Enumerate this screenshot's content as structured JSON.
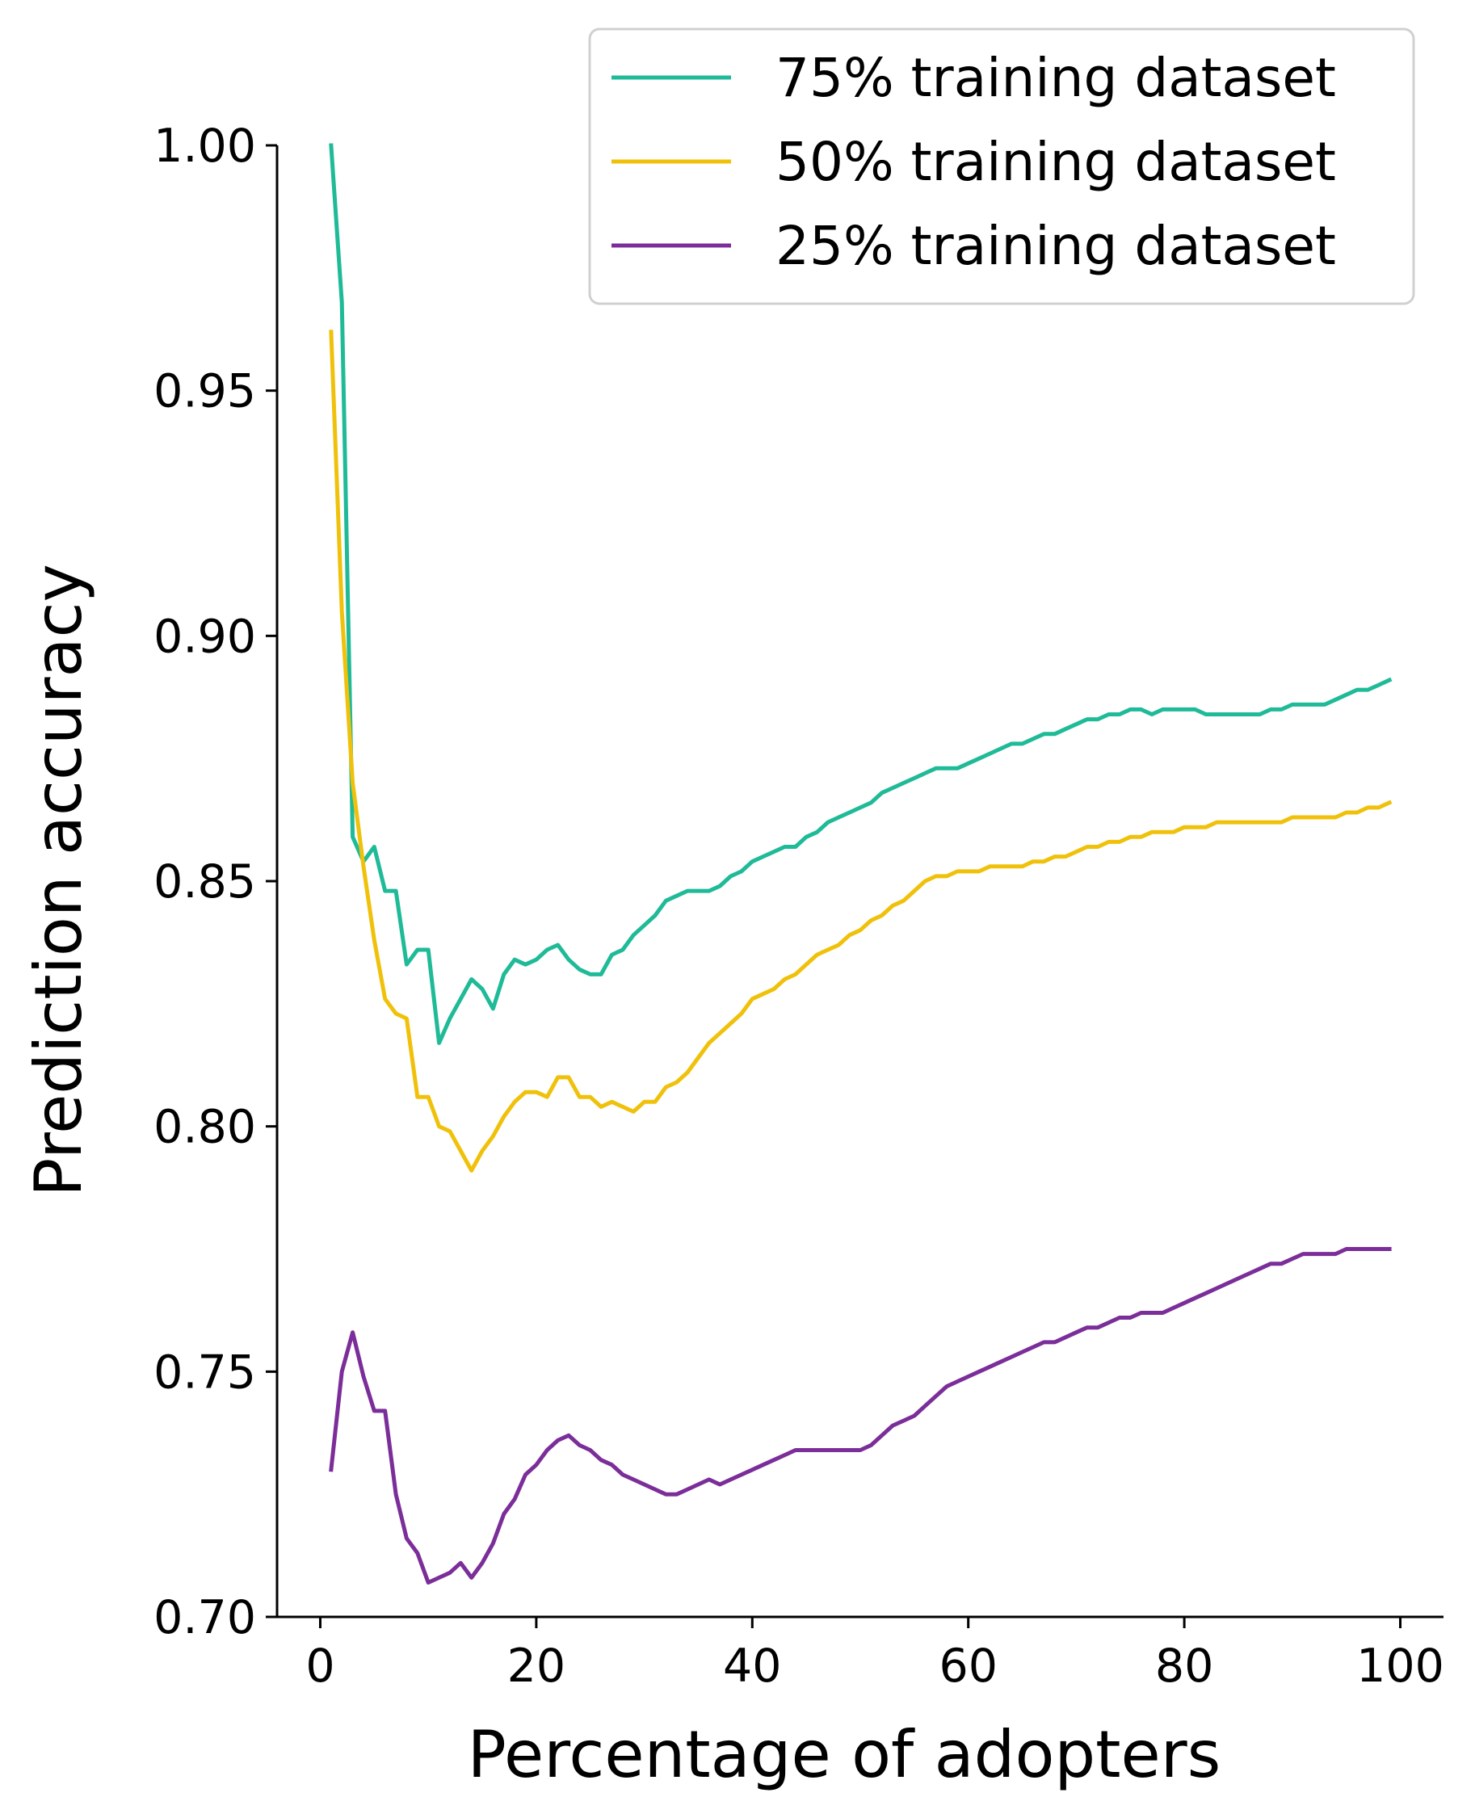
{
  "chart_data": {
    "type": "line",
    "title": "",
    "xlabel": "Percentage of adopters",
    "ylabel": "Prediction accuracy",
    "xlim": [
      -4,
      104
    ],
    "ylim": [
      0.7,
      1.0
    ],
    "x_ticks": [
      0,
      20,
      40,
      60,
      80,
      100
    ],
    "x_tick_labels": [
      "0",
      "20",
      "40",
      "60",
      "80",
      "100"
    ],
    "y_ticks": [
      0.7,
      0.75,
      0.8,
      0.85,
      0.9,
      0.95,
      1.0
    ],
    "y_tick_labels": [
      "0.70",
      "0.75",
      "0.80",
      "0.85",
      "0.90",
      "0.95",
      "1.00"
    ],
    "grid": false,
    "legend_position": "top-right",
    "series": [
      {
        "name": "75% training dataset",
        "color": "#1fba97",
        "x": [
          1,
          2,
          3,
          4,
          5,
          6,
          7,
          8,
          9,
          10,
          11,
          12,
          13,
          14,
          15,
          16,
          17,
          18,
          19,
          20,
          21,
          22,
          23,
          24,
          25,
          26,
          27,
          28,
          29,
          30,
          31,
          32,
          33,
          34,
          35,
          36,
          37,
          38,
          39,
          40,
          41,
          42,
          43,
          44,
          45,
          46,
          47,
          48,
          49,
          50,
          51,
          52,
          53,
          54,
          55,
          56,
          57,
          58,
          59,
          60,
          61,
          62,
          63,
          64,
          65,
          66,
          67,
          68,
          69,
          70,
          71,
          72,
          73,
          74,
          75,
          76,
          77,
          78,
          79,
          80,
          81,
          82,
          83,
          84,
          85,
          86,
          87,
          88,
          89,
          90,
          91,
          92,
          93,
          94,
          95,
          96,
          97,
          98,
          99
        ],
        "values": [
          1.0,
          0.968,
          0.859,
          0.854,
          0.857,
          0.848,
          0.848,
          0.833,
          0.836,
          0.836,
          0.817,
          0.822,
          0.826,
          0.83,
          0.828,
          0.824,
          0.831,
          0.834,
          0.833,
          0.834,
          0.836,
          0.837,
          0.834,
          0.832,
          0.831,
          0.831,
          0.835,
          0.836,
          0.839,
          0.841,
          0.843,
          0.846,
          0.847,
          0.848,
          0.848,
          0.848,
          0.849,
          0.851,
          0.852,
          0.854,
          0.855,
          0.856,
          0.857,
          0.857,
          0.859,
          0.86,
          0.862,
          0.863,
          0.864,
          0.865,
          0.866,
          0.868,
          0.869,
          0.87,
          0.871,
          0.872,
          0.873,
          0.873,
          0.873,
          0.874,
          0.875,
          0.876,
          0.877,
          0.878,
          0.878,
          0.879,
          0.88,
          0.88,
          0.881,
          0.882,
          0.883,
          0.883,
          0.884,
          0.884,
          0.885,
          0.885,
          0.884,
          0.885,
          0.885,
          0.885,
          0.885,
          0.884,
          0.884,
          0.884,
          0.884,
          0.884,
          0.884,
          0.885,
          0.885,
          0.886,
          0.886,
          0.886,
          0.886,
          0.887,
          0.888,
          0.889,
          0.889,
          0.89,
          0.891
        ]
      },
      {
        "name": "50% training dataset",
        "color": "#f0c10a",
        "x": [
          1,
          2,
          3,
          4,
          5,
          6,
          7,
          8,
          9,
          10,
          11,
          12,
          13,
          14,
          15,
          16,
          17,
          18,
          19,
          20,
          21,
          22,
          23,
          24,
          25,
          26,
          27,
          28,
          29,
          30,
          31,
          32,
          33,
          34,
          35,
          36,
          37,
          38,
          39,
          40,
          41,
          42,
          43,
          44,
          45,
          46,
          47,
          48,
          49,
          50,
          51,
          52,
          53,
          54,
          55,
          56,
          57,
          58,
          59,
          60,
          61,
          62,
          63,
          64,
          65,
          66,
          67,
          68,
          69,
          70,
          71,
          72,
          73,
          74,
          75,
          76,
          77,
          78,
          79,
          80,
          81,
          82,
          83,
          84,
          85,
          86,
          87,
          88,
          89,
          90,
          91,
          92,
          93,
          94,
          95,
          96,
          97,
          98,
          99
        ],
        "values": [
          0.962,
          0.905,
          0.87,
          0.853,
          0.838,
          0.826,
          0.823,
          0.822,
          0.806,
          0.806,
          0.8,
          0.799,
          0.795,
          0.791,
          0.795,
          0.798,
          0.802,
          0.805,
          0.807,
          0.807,
          0.806,
          0.81,
          0.81,
          0.806,
          0.806,
          0.804,
          0.805,
          0.804,
          0.803,
          0.805,
          0.805,
          0.808,
          0.809,
          0.811,
          0.814,
          0.817,
          0.819,
          0.821,
          0.823,
          0.826,
          0.827,
          0.828,
          0.83,
          0.831,
          0.833,
          0.835,
          0.836,
          0.837,
          0.839,
          0.84,
          0.842,
          0.843,
          0.845,
          0.846,
          0.848,
          0.85,
          0.851,
          0.851,
          0.852,
          0.852,
          0.852,
          0.853,
          0.853,
          0.853,
          0.853,
          0.854,
          0.854,
          0.855,
          0.855,
          0.856,
          0.857,
          0.857,
          0.858,
          0.858,
          0.859,
          0.859,
          0.86,
          0.86,
          0.86,
          0.861,
          0.861,
          0.861,
          0.862,
          0.862,
          0.862,
          0.862,
          0.862,
          0.862,
          0.862,
          0.863,
          0.863,
          0.863,
          0.863,
          0.863,
          0.864,
          0.864,
          0.865,
          0.865,
          0.866
        ]
      },
      {
        "name": "25% training dataset",
        "color": "#7b2e99",
        "x": [
          1,
          2,
          3,
          4,
          5,
          6,
          7,
          8,
          9,
          10,
          11,
          12,
          13,
          14,
          15,
          16,
          17,
          18,
          19,
          20,
          21,
          22,
          23,
          24,
          25,
          26,
          27,
          28,
          29,
          30,
          31,
          32,
          33,
          34,
          35,
          36,
          37,
          38,
          39,
          40,
          41,
          42,
          43,
          44,
          45,
          46,
          47,
          48,
          49,
          50,
          51,
          52,
          53,
          54,
          55,
          56,
          57,
          58,
          59,
          60,
          61,
          62,
          63,
          64,
          65,
          66,
          67,
          68,
          69,
          70,
          71,
          72,
          73,
          74,
          75,
          76,
          77,
          78,
          79,
          80,
          81,
          82,
          83,
          84,
          85,
          86,
          87,
          88,
          89,
          90,
          91,
          92,
          93,
          94,
          95,
          96,
          97,
          98,
          99
        ],
        "values": [
          0.73,
          0.75,
          0.758,
          0.749,
          0.742,
          0.742,
          0.725,
          0.716,
          0.713,
          0.707,
          0.708,
          0.709,
          0.711,
          0.708,
          0.711,
          0.715,
          0.721,
          0.724,
          0.729,
          0.731,
          0.734,
          0.736,
          0.737,
          0.735,
          0.734,
          0.732,
          0.731,
          0.729,
          0.728,
          0.727,
          0.726,
          0.725,
          0.725,
          0.726,
          0.727,
          0.728,
          0.727,
          0.728,
          0.729,
          0.73,
          0.731,
          0.732,
          0.733,
          0.734,
          0.734,
          0.734,
          0.734,
          0.734,
          0.734,
          0.734,
          0.735,
          0.737,
          0.739,
          0.74,
          0.741,
          0.743,
          0.745,
          0.747,
          0.748,
          0.749,
          0.75,
          0.751,
          0.752,
          0.753,
          0.754,
          0.755,
          0.756,
          0.756,
          0.757,
          0.758,
          0.759,
          0.759,
          0.76,
          0.761,
          0.761,
          0.762,
          0.762,
          0.762,
          0.763,
          0.764,
          0.765,
          0.766,
          0.767,
          0.768,
          0.769,
          0.77,
          0.771,
          0.772,
          0.772,
          0.773,
          0.774,
          0.774,
          0.774,
          0.774,
          0.775,
          0.775,
          0.775,
          0.775,
          0.775
        ]
      }
    ]
  }
}
